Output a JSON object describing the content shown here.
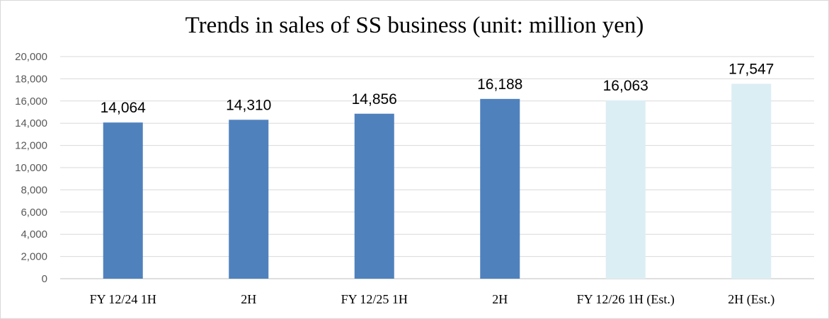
{
  "chart_data": {
    "type": "bar",
    "title": "Trends in sales of SS business (unit: million yen)",
    "xlabel": "",
    "ylabel": "",
    "categories": [
      "FY 12/24 1H",
      "2H",
      "FY 12/25 1H",
      "2H",
      "FY 12/26 1H (Est.)",
      "2H (Est.)"
    ],
    "values": [
      14064,
      14310,
      14856,
      16188,
      16063,
      17547
    ],
    "data_labels": [
      "14,064",
      "14,310",
      "14,856",
      "16,188",
      "16,063",
      "17,547"
    ],
    "estimate": [
      false,
      false,
      false,
      false,
      true,
      true
    ],
    "ylim": [
      0,
      20000
    ],
    "yticks": [
      0,
      2000,
      4000,
      6000,
      8000,
      10000,
      12000,
      14000,
      16000,
      18000,
      20000
    ],
    "ytick_labels": [
      "0",
      "2,000",
      "4,000",
      "6,000",
      "8,000",
      "10,000",
      "12,000",
      "14,000",
      "16,000",
      "18,000",
      "20,000"
    ],
    "grid": true,
    "legend": "none",
    "colors": {
      "actual": "#4f81bd",
      "estimate": "#dbeef4",
      "grid": "#d9d9d9",
      "axis": "#bfbfbf"
    }
  }
}
